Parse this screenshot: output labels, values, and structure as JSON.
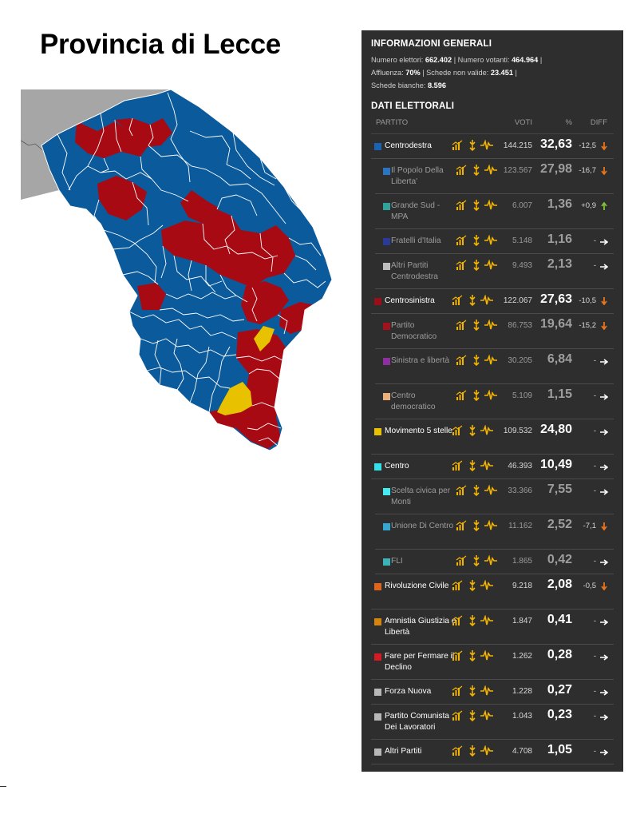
{
  "title": "Provincia di Lecce",
  "colors": {
    "centrodestra": "#0b5a9c",
    "centrosinistra": "#a80a14",
    "movimento5stelle": "#e8c200",
    "outside": "#a6a6a6",
    "border": "#ffffff"
  },
  "general": {
    "heading": "INFORMAZIONI GENERALI",
    "elettori_label": "Numero elettori:",
    "elettori": "662.402",
    "votanti_label": "Numero votanti:",
    "votanti": "464.964",
    "affluenza_label": "Affluenza:",
    "affluenza": "70%",
    "nonvalide_label": "Schede non valide:",
    "nonvalide": "23.451",
    "bianche_label": "Schede bianche:",
    "bianche": "8.596"
  },
  "dati": {
    "heading": "DATI ELETTORALI",
    "col_partito": "PARTITO",
    "col_voti": "VOTI",
    "col_pct": "%",
    "col_diff": "DIFF"
  },
  "rows": [
    {
      "name": "Centrodestra",
      "sub": false,
      "color": "#1a63b0",
      "voti": "144.215",
      "pct": "32,63",
      "diff": "-12,5",
      "trend": "down"
    },
    {
      "name": "Il Popolo Della Liberta'",
      "sub": true,
      "color": "#2a74c4",
      "voti": "123.567",
      "pct": "27,98",
      "diff": "-16,7",
      "trend": "down"
    },
    {
      "name": "Grande Sud - MPA",
      "sub": true,
      "color": "#2fa39a",
      "voti": "6.007",
      "pct": "1,36",
      "diff": "+0,9",
      "trend": "up"
    },
    {
      "name": "Fratelli d'Italia",
      "sub": true,
      "color": "#2a3a9a",
      "voti": "5.148",
      "pct": "1,16",
      "diff": "-",
      "trend": "flat"
    },
    {
      "name": "Altri Partiti Centrodestra",
      "sub": true,
      "color": "#bdbdbd",
      "voti": "9.493",
      "pct": "2,13",
      "diff": "-",
      "trend": "flat"
    },
    {
      "name": "Centrosinistra",
      "sub": false,
      "color": "#9a0e18",
      "voti": "122.067",
      "pct": "27,63",
      "diff": "-10,5",
      "trend": "down"
    },
    {
      "name": "Partito Democratico",
      "sub": true,
      "color": "#a3121c",
      "voti": "86.753",
      "pct": "19,64",
      "diff": "-15,2",
      "trend": "down"
    },
    {
      "name": "Sinistra e libertà",
      "sub": true,
      "color": "#8e2fa0",
      "voti": "30.205",
      "pct": "6,84",
      "diff": "-",
      "trend": "flat"
    },
    {
      "name": "Centro democratico",
      "sub": true,
      "color": "#e8b07a",
      "voti": "5.109",
      "pct": "1,15",
      "diff": "-",
      "trend": "flat"
    },
    {
      "name": "Movimento 5 stelle",
      "sub": false,
      "color": "#e8c200",
      "voti": "109.532",
      "pct": "24,80",
      "diff": "-",
      "trend": "flat"
    },
    {
      "name": "Centro",
      "sub": false,
      "color": "#34e0e8",
      "voti": "46.393",
      "pct": "10,49",
      "diff": "-",
      "trend": "flat"
    },
    {
      "name": "Scelta civica per Monti",
      "sub": true,
      "color": "#43ecf0",
      "voti": "33.366",
      "pct": "7,55",
      "diff": "-",
      "trend": "flat"
    },
    {
      "name": "Unione Di Centro",
      "sub": true,
      "color": "#35a8d0",
      "voti": "11.162",
      "pct": "2,52",
      "diff": "-7,1",
      "trend": "down"
    },
    {
      "name": "FLI",
      "sub": true,
      "color": "#3ab4b8",
      "voti": "1.865",
      "pct": "0,42",
      "diff": "-",
      "trend": "flat"
    },
    {
      "name": "Rivoluzione Civile",
      "sub": false,
      "color": "#e0641c",
      "voti": "9.218",
      "pct": "2,08",
      "diff": "-0,5",
      "trend": "down"
    },
    {
      "name": "Amnistia Giustizia e Libertà",
      "sub": false,
      "color": "#d4850e",
      "voti": "1.847",
      "pct": "0,41",
      "diff": "-",
      "trend": "flat"
    },
    {
      "name": "Fare per Fermare il Declino",
      "sub": false,
      "color": "#d41a22",
      "voti": "1.262",
      "pct": "0,28",
      "diff": "-",
      "trend": "flat"
    },
    {
      "name": "Forza Nuova",
      "sub": false,
      "color": "#b8b8b8",
      "voti": "1.228",
      "pct": "0,27",
      "diff": "-",
      "trend": "flat"
    },
    {
      "name": "Partito Comunista Dei Lavoratori",
      "sub": false,
      "color": "#b8b8b8",
      "voti": "1.043",
      "pct": "0,23",
      "diff": "-",
      "trend": "flat"
    },
    {
      "name": "Altri Partiti",
      "sub": false,
      "color": "#b8b8b8",
      "voti": "4.708",
      "pct": "1,05",
      "diff": "-",
      "trend": "flat"
    }
  ]
}
